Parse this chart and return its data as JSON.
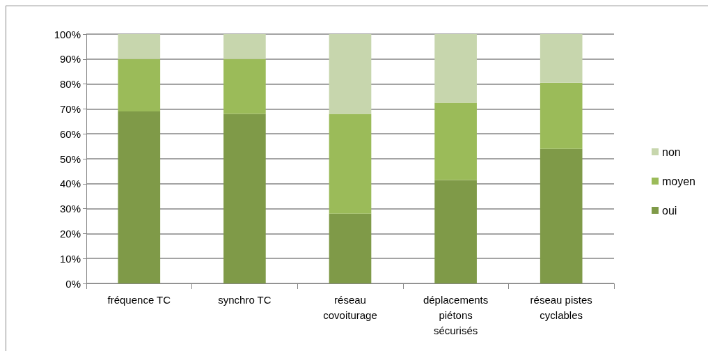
{
  "chart_data": {
    "type": "bar",
    "stacked": true,
    "categories": [
      "fréquence TC",
      "synchro TC",
      "réseau covoiturage",
      "déplacements piétons sécurisés",
      "réseau pistes cyclables"
    ],
    "series": [
      {
        "name": "oui",
        "color": "#7f9a48",
        "values": [
          69,
          68,
          28,
          41.5,
          54
        ]
      },
      {
        "name": "moyen",
        "color": "#9bbb59",
        "values": [
          21,
          22,
          40,
          31,
          26.5
        ]
      },
      {
        "name": "non",
        "color": "#c7d6ad",
        "values": [
          10,
          10,
          32,
          27.5,
          19.5
        ]
      }
    ],
    "ylim": [
      0,
      100
    ],
    "yticks": [
      {
        "value": 0,
        "label": "0%"
      },
      {
        "value": 10,
        "label": "10%"
      },
      {
        "value": 20,
        "label": "20%"
      },
      {
        "value": 30,
        "label": "30%"
      },
      {
        "value": 40,
        "label": "40%"
      },
      {
        "value": 50,
        "label": "50%"
      },
      {
        "value": 60,
        "label": "60%"
      },
      {
        "value": 70,
        "label": "70%"
      },
      {
        "value": 80,
        "label": "80%"
      },
      {
        "value": 90,
        "label": "90%"
      },
      {
        "value": 100,
        "label": "100%"
      }
    ],
    "grid": "y",
    "legend": "right"
  }
}
